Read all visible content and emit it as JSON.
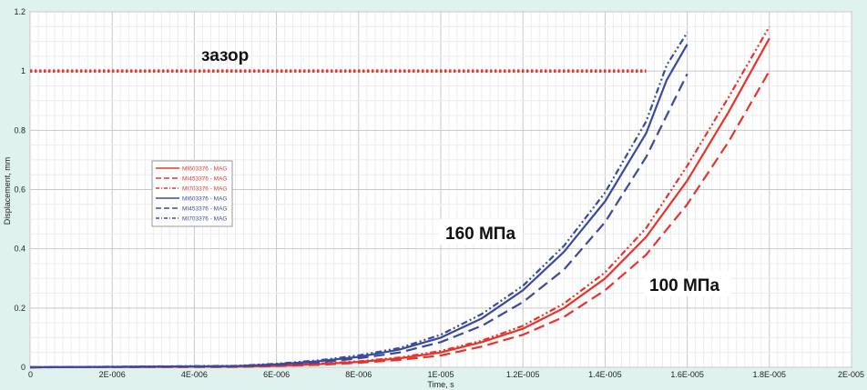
{
  "chart_data": {
    "type": "line",
    "xlabel": "Time, s",
    "ylabel": "Displacement, mm",
    "xlim": [
      0,
      2e-05
    ],
    "ylim": [
      0,
      1.2
    ],
    "x_ticks": [
      "0",
      "2E-006",
      "4E-006",
      "6E-006",
      "8E-006",
      "1E-005",
      "1.2E-005",
      "1.4E-005",
      "1.6E-005",
      "1.8E-005",
      "2E-005"
    ],
    "y_ticks": [
      "0",
      "0.2",
      "0.4",
      "0.6",
      "0.8",
      "1",
      "1.2"
    ],
    "grid": true,
    "legend_placement": "left-middle",
    "colors": {
      "red": "#e8332b",
      "blue": "#3a4a9e",
      "threshold": "#e8332b"
    },
    "annotations": {
      "gap_label": "зазор",
      "label_160": "160 МПа",
      "label_100": "100 МПа"
    },
    "threshold": {
      "y": 1.0,
      "x": [
        0,
        1.5e-05
      ],
      "style": "dotted"
    },
    "series": [
      {
        "name": "MI603376 - MAG",
        "color": "red",
        "dash": "solid",
        "x": [
          0,
          5e-06,
          6e-06,
          7e-06,
          8e-06,
          9e-06,
          1e-05,
          1.1e-05,
          1.2e-05,
          1.3e-05,
          1.4e-05,
          1.5e-05,
          1.6e-05,
          1.7e-05,
          1.8e-05
        ],
        "y": [
          0,
          0.002,
          0.005,
          0.01,
          0.018,
          0.03,
          0.05,
          0.085,
          0.13,
          0.2,
          0.3,
          0.44,
          0.63,
          0.86,
          1.11
        ]
      },
      {
        "name": "MI453376 - MAG",
        "color": "red",
        "dash": "dashed",
        "x": [
          0,
          5e-06,
          6e-06,
          7e-06,
          8e-06,
          9e-06,
          1e-05,
          1.1e-05,
          1.2e-05,
          1.3e-05,
          1.4e-05,
          1.5e-05,
          1.6e-05,
          1.7e-05,
          1.8e-05
        ],
        "y": [
          0,
          0.001,
          0.004,
          0.008,
          0.015,
          0.025,
          0.04,
          0.07,
          0.11,
          0.17,
          0.26,
          0.38,
          0.55,
          0.76,
          1.0
        ]
      },
      {
        "name": "MI703376 - MAG",
        "color": "red",
        "dash": "dashdot",
        "x": [
          0,
          5e-06,
          6e-06,
          7e-06,
          8e-06,
          9e-06,
          1e-05,
          1.1e-05,
          1.2e-05,
          1.3e-05,
          1.4e-05,
          1.5e-05,
          1.6e-05,
          1.7e-05,
          1.8e-05
        ],
        "y": [
          0,
          0.002,
          0.006,
          0.012,
          0.02,
          0.033,
          0.055,
          0.09,
          0.14,
          0.215,
          0.32,
          0.47,
          0.68,
          0.91,
          1.15
        ]
      },
      {
        "name": "MI603376 - MAG",
        "color": "blue",
        "dash": "solid",
        "x": [
          0,
          5e-06,
          6e-06,
          7e-06,
          8e-06,
          9e-06,
          1e-05,
          1.1e-05,
          1.2e-05,
          1.3e-05,
          1.4e-05,
          1.5e-05,
          1.55e-05,
          1.6e-05
        ],
        "y": [
          0,
          0.004,
          0.01,
          0.02,
          0.035,
          0.06,
          0.1,
          0.165,
          0.26,
          0.39,
          0.56,
          0.79,
          0.97,
          1.09
        ]
      },
      {
        "name": "MI453376 - MAG",
        "color": "blue",
        "dash": "dashed",
        "x": [
          0,
          5e-06,
          6e-06,
          7e-06,
          8e-06,
          9e-06,
          1e-05,
          1.1e-05,
          1.2e-05,
          1.3e-05,
          1.4e-05,
          1.5e-05,
          1.6e-05
        ],
        "y": [
          0,
          0.003,
          0.008,
          0.016,
          0.03,
          0.05,
          0.085,
          0.14,
          0.22,
          0.33,
          0.49,
          0.71,
          0.99
        ]
      },
      {
        "name": "MI703376 - MAG",
        "color": "blue",
        "dash": "dashdot",
        "x": [
          0,
          5e-06,
          6e-06,
          7e-06,
          8e-06,
          9e-06,
          1e-05,
          1.1e-05,
          1.2e-05,
          1.3e-05,
          1.4e-05,
          1.5e-05,
          1.55e-05,
          1.6e-05
        ],
        "y": [
          0,
          0.005,
          0.012,
          0.023,
          0.04,
          0.065,
          0.11,
          0.18,
          0.275,
          0.41,
          0.59,
          0.83,
          1.02,
          1.13
        ]
      }
    ]
  }
}
